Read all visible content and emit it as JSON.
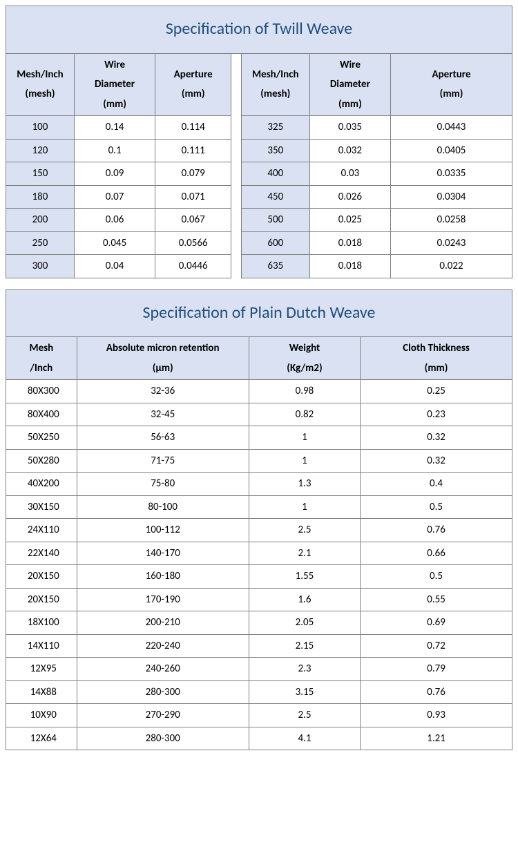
{
  "colors": {
    "header_bg": "#d9e1f2",
    "title_color": "#1f4e79",
    "border": "#7f7f7f",
    "text": "#000000",
    "background": "#ffffff"
  },
  "typography": {
    "title_fontsize": 24,
    "cell_fontsize": 15,
    "font_family": "Calibri"
  },
  "twill": {
    "type": "table",
    "title": "Specification of Twill Weave",
    "columns_left": [
      "Mesh/Inch (mesh)",
      "Wire Diameter (mm)",
      "Aperture (mm)"
    ],
    "columns_right": [
      "Mesh/Inch (mesh)",
      "Wire Diameter (mm)",
      "Aperture (mm)"
    ],
    "col_widths_pct": [
      13,
      15,
      14,
      2,
      13,
      15,
      14
    ],
    "rows": [
      {
        "l": [
          "100",
          "0.14",
          "0.114"
        ],
        "r": [
          "325",
          "0.035",
          "0.0443"
        ]
      },
      {
        "l": [
          "120",
          "0.1",
          "0.111"
        ],
        "r": [
          "350",
          "0.032",
          "0.0405"
        ]
      },
      {
        "l": [
          "150",
          "0.09",
          "0.079"
        ],
        "r": [
          "400",
          "0.03",
          "0.0335"
        ]
      },
      {
        "l": [
          "180",
          "0.07",
          "0.071"
        ],
        "r": [
          "450",
          "0.026",
          "0.0304"
        ]
      },
      {
        "l": [
          "200",
          "0.06",
          "0.067"
        ],
        "r": [
          "500",
          "0.025",
          "0.0258"
        ]
      },
      {
        "l": [
          "250",
          "0.045",
          "0.0566"
        ],
        "r": [
          "600",
          "0.018",
          "0.0243"
        ]
      },
      {
        "l": [
          "300",
          "0.04",
          "0.0446"
        ],
        "r": [
          "635",
          "0.018",
          "0.022"
        ]
      }
    ]
  },
  "dutch": {
    "type": "table",
    "title": "Specification of Plain Dutch Weave",
    "columns": [
      "Mesh /Inch",
      "Absolute micron retention (μm)",
      "Weight (Kg/m2)",
      "Cloth Thickness (mm)"
    ],
    "col_widths_pct": [
      15,
      35,
      22,
      28
    ],
    "rows": [
      [
        "80X300",
        "32-36",
        "0.98",
        "0.25"
      ],
      [
        "80X400",
        "32-45",
        "0.82",
        "0.23"
      ],
      [
        "50X250",
        "56-63",
        "1",
        "0.32"
      ],
      [
        "50X280",
        "71-75",
        "1",
        "0.32"
      ],
      [
        "40X200",
        "75-80",
        "1.3",
        "0.4"
      ],
      [
        "30X150",
        "80-100",
        "1",
        "0.5"
      ],
      [
        "24X110",
        "100-112",
        "2.5",
        "0.76"
      ],
      [
        "22X140",
        "140-170",
        "2.1",
        "0.66"
      ],
      [
        "20X150",
        "160-180",
        "1.55",
        "0.5"
      ],
      [
        "20X150",
        "170-190",
        "1.6",
        "0.55"
      ],
      [
        "18X100",
        "200-210",
        "2.05",
        "0.69"
      ],
      [
        "14X110",
        "220-240",
        "2.15",
        "0.72"
      ],
      [
        "12X95",
        "240-260",
        "2.3",
        "0.79"
      ],
      [
        "14X88",
        "280-300",
        "3.15",
        "0.76"
      ],
      [
        "10X90",
        "270-290",
        "2.5",
        "0.93"
      ],
      [
        "12X64",
        "280-300",
        "4.1",
        "1.21"
      ]
    ]
  }
}
